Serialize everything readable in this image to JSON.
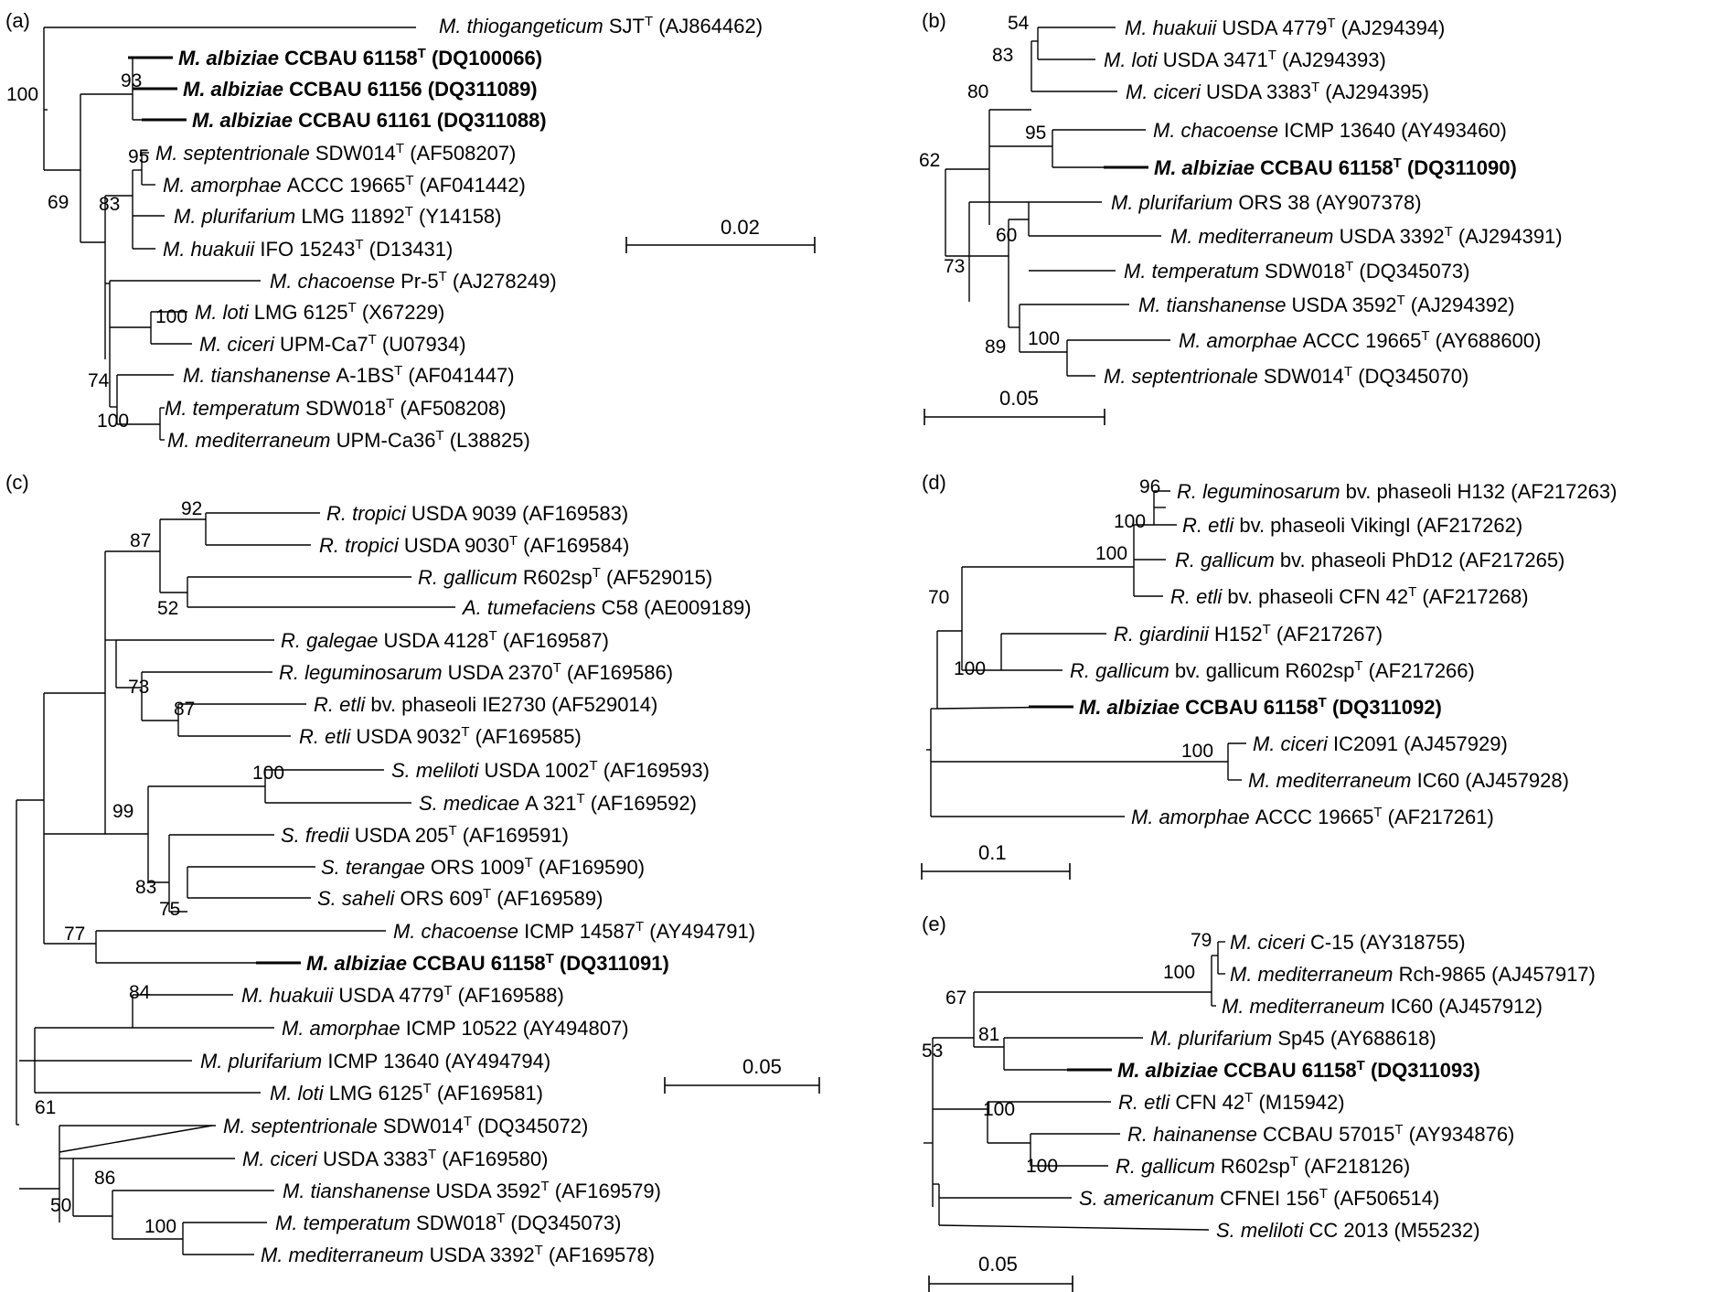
{
  "panels": [
    {
      "label": "(a)",
      "leaves": [
        {
          "name": "M. thiogangeticum",
          "strain": "SJT",
          "T": true,
          "acc": "(AJ864462)"
        },
        {
          "name": "M. albiziae",
          "strain": "CCBAU 61158",
          "T": true,
          "acc": "(DQ100066)",
          "bold": true
        },
        {
          "name": "M. albiziae",
          "strain": "CCBAU 61156",
          "T": false,
          "acc": "(DQ311089)",
          "bold": true
        },
        {
          "name": "M. albiziae",
          "strain": "CCBAU 61161",
          "T": false,
          "acc": "(DQ311088)",
          "bold": true
        },
        {
          "name": "M. septentrionale",
          "strain": "SDW014",
          "T": true,
          "acc": "(AF508207)"
        },
        {
          "name": "M. amorphae",
          "strain": "ACCC 19665",
          "T": true,
          "acc": "(AF041442)"
        },
        {
          "name": "M. plurifarium",
          "strain": "LMG 11892",
          "T": true,
          "acc": "(Y14158)"
        },
        {
          "name": "M. huakuii",
          "strain": "IFO 15243",
          "T": true,
          "acc": "(D13431)"
        },
        {
          "name": "M. chacoense",
          "strain": "Pr-5",
          "T": true,
          "acc": "(AJ278249)"
        },
        {
          "name": "M. loti",
          "strain": "LMG 6125",
          "T": true,
          "acc": "(X67229)"
        },
        {
          "name": "M. ciceri",
          "strain": "UPM-Ca7",
          "T": true,
          "acc": "(U07934)"
        },
        {
          "name": "M. tianshanense",
          "strain": "A-1BS",
          "T": true,
          "acc": "(AF041447)"
        },
        {
          "name": "M. temperatum",
          "strain": "SDW018",
          "T": true,
          "acc": "(AF508208)"
        },
        {
          "name": "M. mediterraneum",
          "strain": "UPM-Ca36",
          "T": true,
          "acc": "(L38825)"
        }
      ],
      "bootstraps": [
        "100",
        "93",
        "95",
        "83",
        "69",
        "100",
        "74",
        "100"
      ],
      "scale": "0.02"
    },
    {
      "label": "(b)",
      "leaves": [
        {
          "name": "M. huakuii",
          "strain": "USDA 4779",
          "T": true,
          "acc": "(AJ294394)"
        },
        {
          "name": "M. loti",
          "strain": "USDA 3471",
          "T": true,
          "acc": "(AJ294393)"
        },
        {
          "name": "M. ciceri",
          "strain": "USDA 3383",
          "T": true,
          "acc": "(AJ294395)"
        },
        {
          "name": "M. chacoense",
          "strain": "ICMP 13640",
          "T": false,
          "acc": "(AY493460)"
        },
        {
          "name": "M. albiziae",
          "strain": "CCBAU 61158",
          "T": true,
          "acc": "(DQ311090)",
          "bold": true
        },
        {
          "name": "M. plurifarium",
          "strain": "ORS 38",
          "T": false,
          "acc": "(AY907378)"
        },
        {
          "name": "M. mediterraneum",
          "strain": "USDA 3392",
          "T": true,
          "acc": "(AJ294391)"
        },
        {
          "name": "M. temperatum",
          "strain": "SDW018",
          "T": true,
          "acc": "(DQ345073)"
        },
        {
          "name": "M. tianshanense",
          "strain": "USDA 3592",
          "T": true,
          "acc": "(AJ294392)"
        },
        {
          "name": "M. amorphae",
          "strain": "ACCC 19665",
          "T": true,
          "acc": "(AY688600)"
        },
        {
          "name": "M. septentrionale",
          "strain": "SDW014",
          "T": true,
          "acc": "(DQ345070)"
        }
      ],
      "bootstraps": [
        "54",
        "83",
        "80",
        "95",
        "62",
        "60",
        "73",
        "100",
        "89"
      ],
      "scale": "0.05"
    },
    {
      "label": "(c)",
      "leaves": [
        {
          "name": "R. tropici",
          "strain": "USDA 9039",
          "T": false,
          "acc": "(AF169583)"
        },
        {
          "name": "R. tropici",
          "strain": "USDA 9030",
          "T": true,
          "acc": "(AF169584)"
        },
        {
          "name": "R. gallicum",
          "strain": "R602sp",
          "T": true,
          "acc": "(AF529015)"
        },
        {
          "name": "A. tumefaciens",
          "strain": "C58",
          "T": false,
          "acc": "(AE009189)"
        },
        {
          "name": "R. galegae",
          "strain": "USDA 4128",
          "T": true,
          "acc": "(AF169587)"
        },
        {
          "name": "R. leguminosarum",
          "strain": "USDA 2370",
          "T": true,
          "acc": "(AF169586)"
        },
        {
          "name": "R. etli",
          "strain": "bv. phaseoli IE2730",
          "T": false,
          "acc": "(AF529014)"
        },
        {
          "name": "R. etli",
          "strain": "USDA 9032",
          "T": true,
          "acc": "(AF169585)"
        },
        {
          "name": "S. meliloti",
          "strain": "USDA 1002",
          "T": true,
          "acc": "(AF169593)"
        },
        {
          "name": "S. medicae",
          "strain": "A 321",
          "T": true,
          "acc": "(AF169592)"
        },
        {
          "name": "S. fredii",
          "strain": "USDA 205",
          "T": true,
          "acc": "(AF169591)"
        },
        {
          "name": "S. terangae",
          "strain": "ORS 1009",
          "T": true,
          "acc": "(AF169590)"
        },
        {
          "name": "S. saheli",
          "strain": "ORS 609",
          "T": true,
          "acc": "(AF169589)"
        },
        {
          "name": "M. chacoense",
          "strain": "ICMP 14587",
          "T": true,
          "acc": "(AY494791)"
        },
        {
          "name": "M. albiziae",
          "strain": "CCBAU 61158",
          "T": true,
          "acc": "(DQ311091)",
          "bold": true
        },
        {
          "name": "M. huakuii",
          "strain": "USDA 4779",
          "T": true,
          "acc": "(AF169588)"
        },
        {
          "name": "M. amorphae",
          "strain": "ICMP 10522",
          "T": false,
          "acc": "(AY494807)"
        },
        {
          "name": "M. plurifarium",
          "strain": "ICMP 13640",
          "T": false,
          "acc": "(AY494794)"
        },
        {
          "name": "M. loti",
          "strain": "LMG 6125",
          "T": true,
          "acc": "(AF169581)"
        },
        {
          "name": "M. septentrionale",
          "strain": "SDW014",
          "T": true,
          "acc": "(DQ345072)"
        },
        {
          "name": "M. ciceri",
          "strain": "USDA 3383",
          "T": true,
          "acc": "(AF169580)"
        },
        {
          "name": "M. tianshanense",
          "strain": "USDA 3592",
          "T": true,
          "acc": "(AF169579)"
        },
        {
          "name": "M. temperatum",
          "strain": "SDW018",
          "T": true,
          "acc": "(DQ345073)"
        },
        {
          "name": "M. mediterraneum",
          "strain": "USDA 3392",
          "T": true,
          "acc": "(AF169578)"
        }
      ],
      "bootstraps": [
        "92",
        "87",
        "52",
        "73",
        "87",
        "100",
        "99",
        "83",
        "75",
        "77",
        "84",
        "61",
        "86",
        "50",
        "100"
      ],
      "scale": "0.05"
    },
    {
      "label": "(d)",
      "leaves": [
        {
          "name": "R. leguminosarum",
          "strain": "bv. phaseoli H132",
          "T": false,
          "acc": "(AF217263)"
        },
        {
          "name": "R. etli",
          "strain": "bv. phaseoli VikingI",
          "T": false,
          "acc": "(AF217262)"
        },
        {
          "name": "R. gallicum",
          "strain": "bv. phaseoli PhD12",
          "T": false,
          "acc": "(AF217265)"
        },
        {
          "name": "R. etli",
          "strain": "bv. phaseoli CFN 42",
          "T": true,
          "acc": "(AF217268)"
        },
        {
          "name": "R. giardinii",
          "strain": "H152",
          "T": true,
          "acc": "(AF217267)"
        },
        {
          "name": "R. gallicum",
          "strain": "bv. gallicum R602sp",
          "T": true,
          "acc": "(AF217266)"
        },
        {
          "name": "M. albiziae",
          "strain": "CCBAU 61158",
          "T": true,
          "acc": "(DQ311092)",
          "bold": true
        },
        {
          "name": "M. ciceri",
          "strain": "IC2091",
          "T": false,
          "acc": "(AJ457929)"
        },
        {
          "name": "M. mediterraneum",
          "strain": "IC60",
          "T": false,
          "acc": "(AJ457928)"
        },
        {
          "name": "M. amorphae",
          "strain": "ACCC 19665",
          "T": true,
          "acc": "(AF217261)"
        }
      ],
      "bootstraps": [
        "96",
        "100",
        "100",
        "70",
        "100",
        "100"
      ],
      "scale": "0.1"
    },
    {
      "label": "(e)",
      "leaves": [
        {
          "name": "M. ciceri",
          "strain": "C-15",
          "T": false,
          "acc": "(AY318755)"
        },
        {
          "name": "M. mediterraneum",
          "strain": "Rch-9865",
          "T": false,
          "acc": "(AJ457917)"
        },
        {
          "name": "M. mediterraneum",
          "strain": "IC60",
          "T": false,
          "acc": "(AJ457912)"
        },
        {
          "name": "M. plurifarium",
          "strain": "Sp45",
          "T": false,
          "acc": "(AY688618)"
        },
        {
          "name": "M. albiziae",
          "strain": "CCBAU 61158",
          "T": true,
          "acc": "(DQ311093)",
          "bold": true
        },
        {
          "name": "R. etli",
          "strain": "CFN 42",
          "T": true,
          "acc": "(M15942)"
        },
        {
          "name": "R. hainanense",
          "strain": "CCBAU 57015",
          "T": true,
          "acc": "(AY934876)"
        },
        {
          "name": "R. gallicum",
          "strain": "R602sp",
          "T": true,
          "acc": "(AF218126)"
        },
        {
          "name": "S. americanum",
          "strain": "CFNEI 156",
          "T": true,
          "acc": "(AF506514)"
        },
        {
          "name": "S. meliloti",
          "strain": "CC 2013",
          "T": false,
          "acc": "(M55232)"
        }
      ],
      "bootstraps": [
        "79",
        "100",
        "67",
        "81",
        "53",
        "100",
        "100"
      ],
      "scale": "0.05"
    }
  ]
}
